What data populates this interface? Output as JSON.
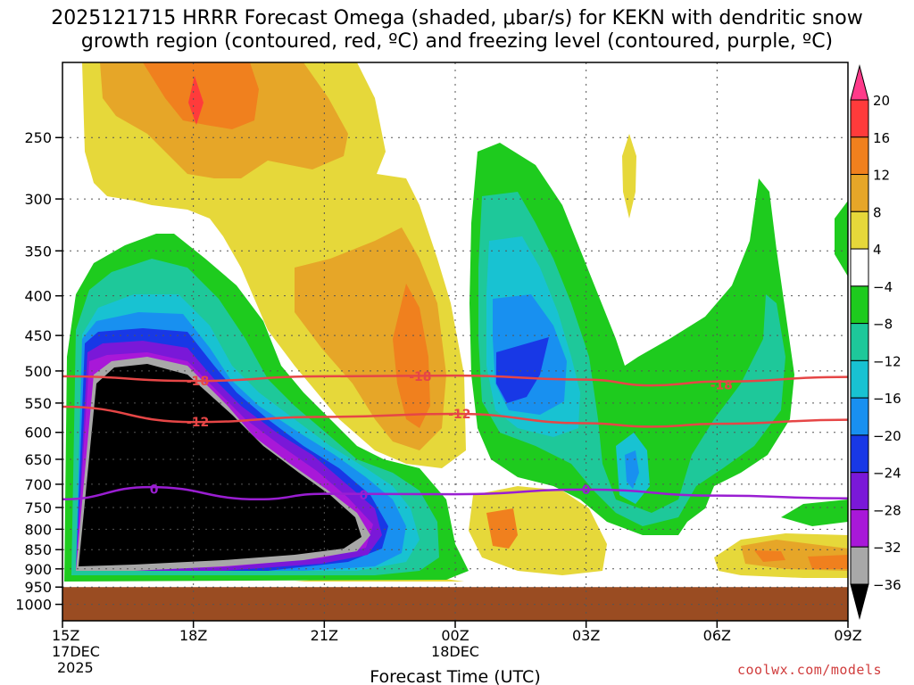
{
  "chart_data": {
    "type": "heatmap",
    "title_line1": "2025121715 HRRR Forecast Omega (shaded, μbar/s) for KEKN with dendritic snow",
    "title_line2": "growth region (contoured, red, ºC) and freezing level (contoured, purple, ºC)",
    "xlabel": "Forecast Time (UTC)",
    "x_ticks": [
      {
        "label": "15Z",
        "sub1": "17DEC",
        "sub2": "2025",
        "hours": 0
      },
      {
        "label": "18Z",
        "hours": 3
      },
      {
        "label": "21Z",
        "hours": 6
      },
      {
        "label": "00Z",
        "sub1": "18DEC",
        "hours": 9
      },
      {
        "label": "03Z",
        "hours": 12
      },
      {
        "label": "06Z",
        "hours": 15
      },
      {
        "label": "09Z",
        "hours": 18
      }
    ],
    "y_ticks": [
      250,
      300,
      350,
      400,
      450,
      500,
      550,
      600,
      650,
      700,
      750,
      800,
      850,
      900,
      950,
      1000
    ],
    "ylim": [
      200,
      1050
    ],
    "y_scale": "log-pressure",
    "colorbar": {
      "labels": [
        "20",
        "16",
        "12",
        "8",
        "4",
        "−4",
        "−8",
        "−12",
        "−16",
        "−20",
        "−24",
        "−28",
        "−32",
        "−36"
      ],
      "colors": [
        "#ff3a8a",
        "#ff3b3b",
        "#f0801e",
        "#e6a628",
        "#e6d83a",
        "#ffffff",
        "#1ecb1e",
        "#1ec89a",
        "#18c2d2",
        "#1890f0",
        "#1838e6",
        "#7a18d8",
        "#a818d8",
        "#a8a8a8",
        "#000000"
      ]
    },
    "omega_regions": [
      {
        "name": "main-descent-upper",
        "value": 8
      },
      {
        "name": "main-ascent-lower",
        "value": -40
      },
      {
        "name": "late-ascent",
        "value": -20
      },
      {
        "name": "weak-descent-low",
        "value": 8
      }
    ],
    "contours": [
      {
        "name": "dgz-upper",
        "label": "-18",
        "color": "#e64646",
        "points": [
          [
            0,
            508
          ],
          [
            3,
            515
          ],
          [
            6,
            508
          ],
          [
            9,
            507
          ],
          [
            12,
            513
          ],
          [
            13.5,
            522
          ],
          [
            15,
            516
          ],
          [
            18,
            509
          ]
        ]
      },
      {
        "name": "dgz-lower",
        "label": "-12",
        "color": "#e64646",
        "points": [
          [
            0,
            556
          ],
          [
            3,
            582
          ],
          [
            6,
            573
          ],
          [
            9,
            568
          ],
          [
            12,
            584
          ],
          [
            13.5,
            590
          ],
          [
            15,
            585
          ],
          [
            18,
            578
          ]
        ]
      },
      {
        "name": "freezing-level",
        "label": "0",
        "color": "#9a1ed2",
        "points": [
          [
            0,
            732
          ],
          [
            2,
            706
          ],
          [
            4.5,
            732
          ],
          [
            6,
            720
          ],
          [
            9,
            721
          ],
          [
            12,
            711
          ],
          [
            15,
            724
          ],
          [
            18,
            730
          ]
        ]
      }
    ],
    "contour_labels": [
      {
        "text": "-18",
        "hours": 3.1,
        "pres": 515
      },
      {
        "text": "-18",
        "hours": 8.2,
        "pres": 508
      },
      {
        "text": "-18",
        "hours": 15.1,
        "pres": 521
      },
      {
        "text": "-12",
        "hours": 3.1,
        "pres": 582
      },
      {
        "text": "-12",
        "hours": 9.1,
        "pres": 568
      },
      {
        "text": "0",
        "hours": 2.1,
        "pres": 710
      },
      {
        "text": "0",
        "hours": 6.9,
        "pres": 723
      },
      {
        "text": "0",
        "hours": 12.0,
        "pres": 711
      }
    ],
    "surface_level": 950,
    "grid": true
  },
  "credit": "coolwx.com/models"
}
